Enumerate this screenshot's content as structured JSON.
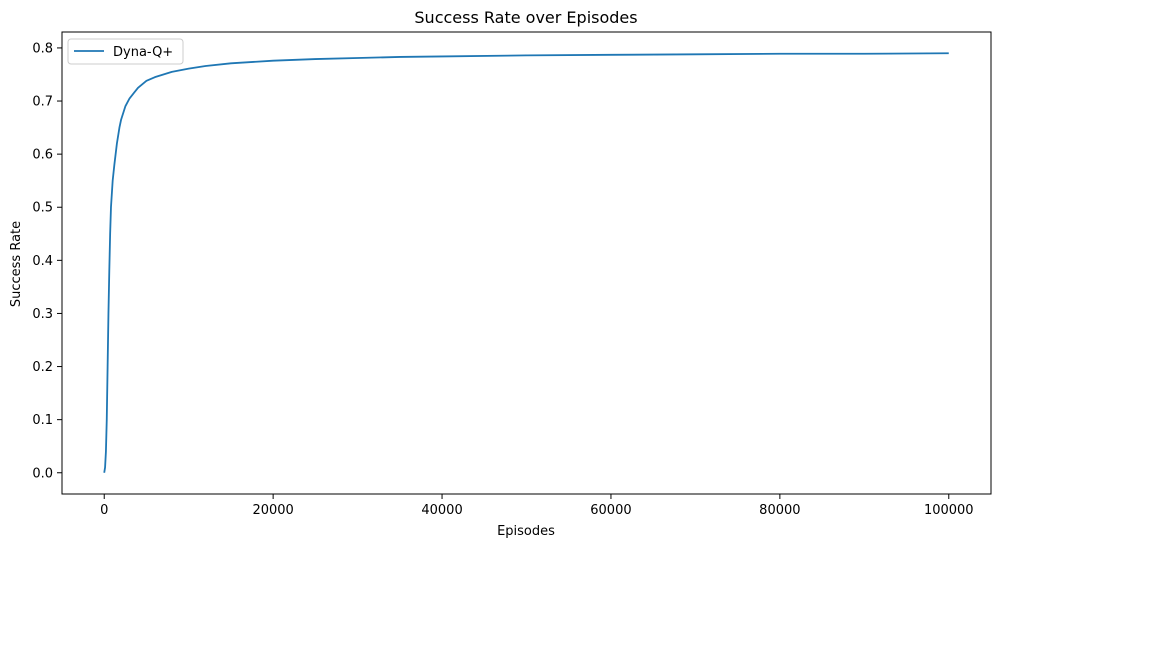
{
  "chart_data": {
    "type": "line",
    "title": "Success Rate over Episodes",
    "xlabel": "Episodes",
    "ylabel": "Success Rate",
    "xlim": [
      -5000,
      105000
    ],
    "ylim": [
      -0.04,
      0.83
    ],
    "xticks": [
      0,
      20000,
      40000,
      60000,
      80000,
      100000
    ],
    "xtick_labels": [
      "0",
      "20000",
      "40000",
      "60000",
      "80000",
      "100000"
    ],
    "yticks": [
      0.0,
      0.1,
      0.2,
      0.3,
      0.4,
      0.5,
      0.6,
      0.7,
      0.8
    ],
    "ytick_labels": [
      "0.0",
      "0.1",
      "0.2",
      "0.3",
      "0.4",
      "0.5",
      "0.6",
      "0.7",
      "0.8"
    ],
    "grid": false,
    "legend_position": "top-left",
    "series": [
      {
        "name": "Dyna-Q+",
        "color": "#1f77b4",
        "x": [
          0,
          100,
          200,
          300,
          400,
          500,
          600,
          700,
          800,
          1000,
          1200,
          1500,
          1800,
          2000,
          2500,
          3000,
          3500,
          4000,
          5000,
          6000,
          7000,
          8000,
          10000,
          12000,
          15000,
          18000,
          20000,
          25000,
          30000,
          35000,
          40000,
          50000,
          60000,
          70000,
          80000,
          90000,
          100000
        ],
        "y": [
          0.0,
          0.01,
          0.04,
          0.1,
          0.2,
          0.3,
          0.38,
          0.45,
          0.5,
          0.55,
          0.58,
          0.62,
          0.65,
          0.665,
          0.69,
          0.705,
          0.715,
          0.725,
          0.738,
          0.745,
          0.75,
          0.755,
          0.761,
          0.766,
          0.771,
          0.774,
          0.776,
          0.779,
          0.781,
          0.783,
          0.784,
          0.786,
          0.787,
          0.788,
          0.789,
          0.789,
          0.79
        ]
      }
    ]
  }
}
